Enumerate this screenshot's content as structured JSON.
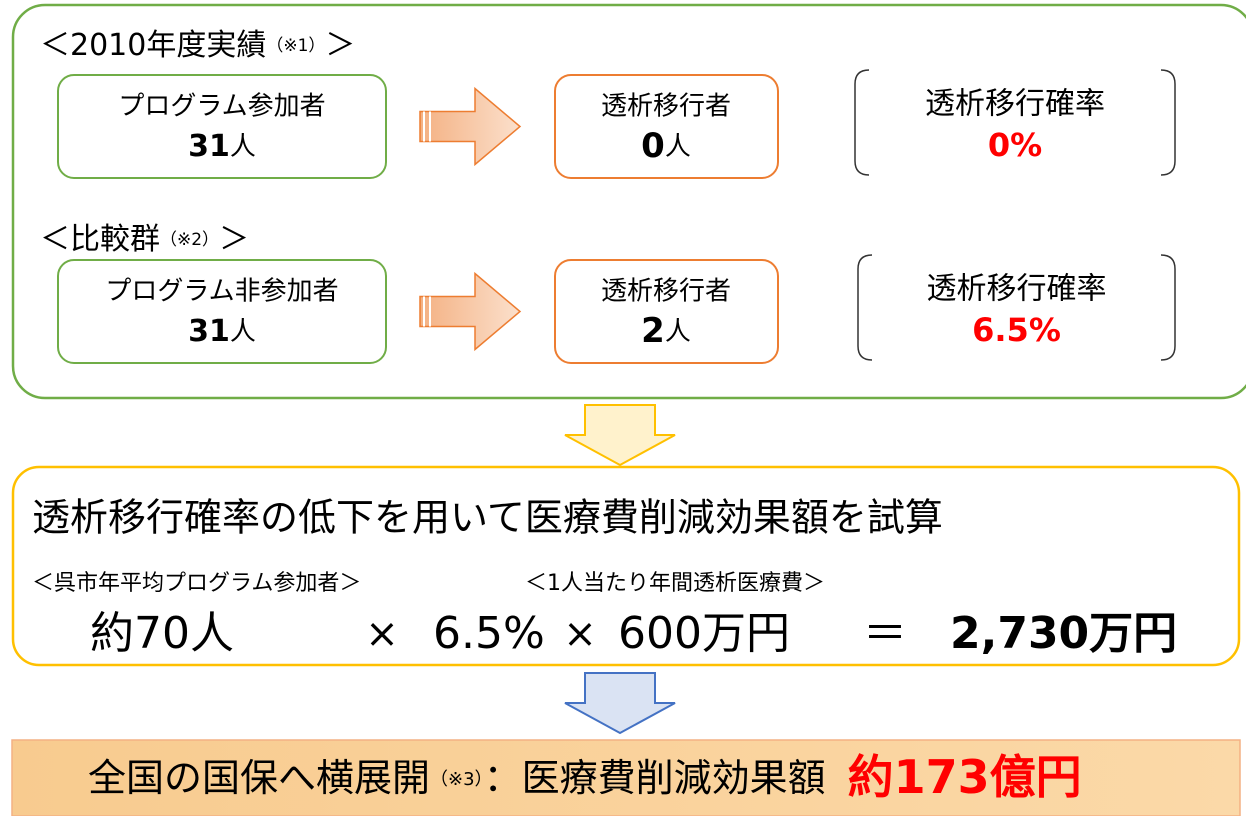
{
  "groups": [
    {
      "heading": {
        "open": "＜2010年度実績",
        "note": "（※1）",
        "close": "＞"
      },
      "participants": {
        "label": "プログラム参加者",
        "number": "31",
        "unit": "人"
      },
      "dialysis": {
        "label": "透析移行者",
        "number": "0",
        "unit": "人"
      },
      "rate": {
        "label": "透析移行確率",
        "value": "0%"
      }
    },
    {
      "heading": {
        "open": "＜比較群",
        "note": "（※2）",
        "close": "＞"
      },
      "participants": {
        "label": "プログラム非参加者",
        "number": "31",
        "unit": "人"
      },
      "dialysis": {
        "label": "透析移行者",
        "number": "2",
        "unit": "人"
      },
      "rate": {
        "label": "透析移行確率",
        "value": "6.5%"
      }
    }
  ],
  "calculation": {
    "title": "透析移行確率の低下を用いて医療費削減効果額を試算",
    "label_participants": "＜呉市年平均プログラム参加者＞",
    "label_cost": "＜1人当たり年間透析医療費＞",
    "formula": [
      "約70人",
      "×",
      "6.5%",
      "×",
      "600万円",
      "＝",
      "2,730万円"
    ]
  },
  "result": {
    "lead": "全国の国保へ横展開",
    "note": "（※3）",
    "label": "：医療費削減効果額",
    "amount": "約173億円"
  }
}
